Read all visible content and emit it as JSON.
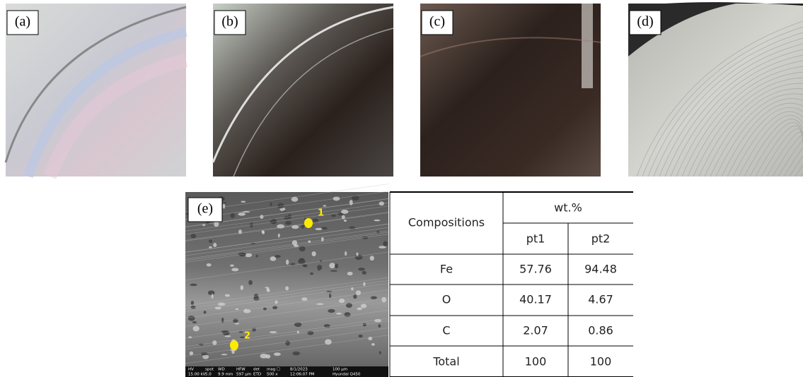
{
  "panels": [
    {
      "label": "(a)"
    },
    {
      "label": "(b)"
    },
    {
      "label": "(c)"
    },
    {
      "label": "(d)"
    }
  ],
  "sem": {
    "label": "(e)",
    "points": [
      "1",
      "2"
    ],
    "info_header": [
      "HV",
      "spot",
      "WD",
      "HFW",
      "det",
      "mag ☐",
      "8/1/2023",
      "100 µm"
    ],
    "info_values": [
      "15.00 kV",
      "5.0",
      "9.9 mm",
      "597 µm",
      "ETD",
      "500 x",
      "12:06:07 PM",
      "Hyundai Q450"
    ]
  },
  "table": {
    "header": [
      "Compositions",
      "wt.%"
    ],
    "subheader": [
      "pt1",
      "pt2"
    ],
    "rows": [
      [
        "Fe",
        "57.76",
        "94.48"
      ],
      [
        "O",
        "40.17",
        "4.67"
      ],
      [
        "C",
        "2.07",
        "0.86"
      ],
      [
        "Total",
        "100",
        "100"
      ]
    ]
  }
}
